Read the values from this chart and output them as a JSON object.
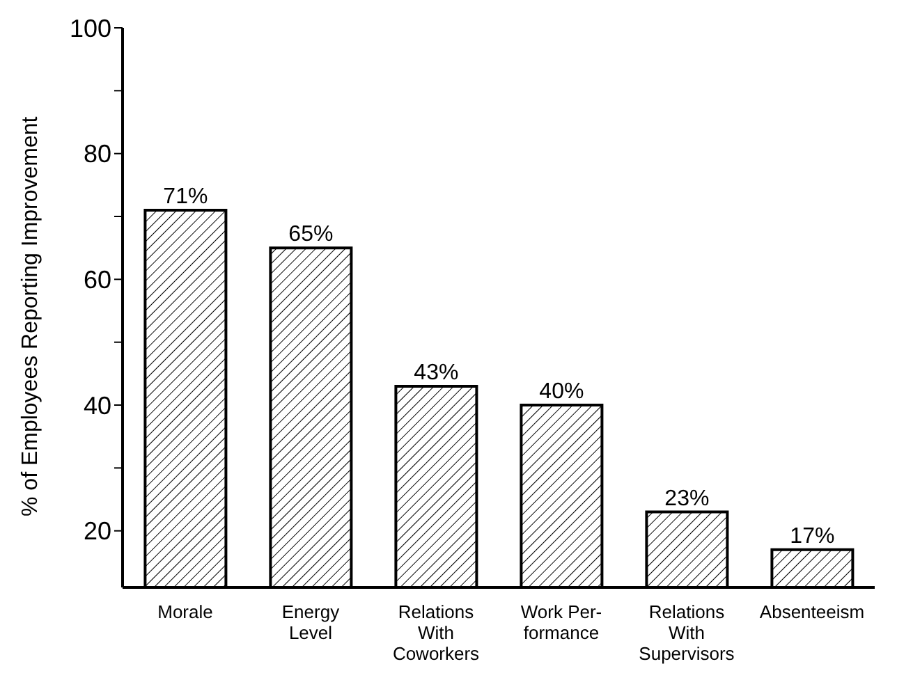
{
  "chart_data": {
    "type": "bar",
    "ylabel": "% of Employees Reporting Improvement",
    "categories": [
      "Morale",
      "Energy\nLevel",
      "Relations\nWith\nCoworkers",
      "Work Per-\nformance",
      "Relations\nWith\nSupervisors",
      "Absenteeism"
    ],
    "values": [
      71,
      65,
      43,
      40,
      23,
      17
    ],
    "value_labels": [
      "71%",
      "65%",
      "43%",
      "40%",
      "23%",
      "17%"
    ],
    "color": "#000000",
    "ylim": [
      11,
      100
    ],
    "yticks": [
      20,
      {
        "value": 30,
        "label": null
      },
      40,
      {
        "value": 50,
        "label": null
      },
      60,
      {
        "value": 70,
        "label": null
      },
      80,
      {
        "value": 90,
        "label": null
      },
      100
    ],
    "grid": false,
    "legend": false
  }
}
